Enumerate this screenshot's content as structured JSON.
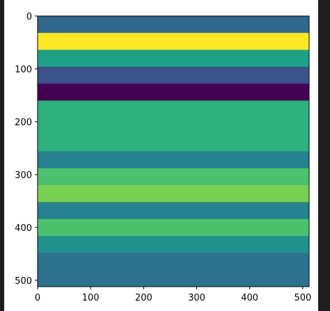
{
  "chart_data": {
    "type": "heatmap",
    "colormap": "viridis",
    "grid": false,
    "xlim": [
      0,
      512
    ],
    "ylim": [
      512,
      0
    ],
    "x_ticks": [
      0,
      100,
      200,
      300,
      400,
      500
    ],
    "y_ticks": [
      0,
      100,
      200,
      300,
      400,
      500
    ],
    "x_tick_labels": [
      "0",
      "100",
      "200",
      "300",
      "400",
      "500"
    ],
    "y_tick_labels": [
      "0",
      "100",
      "200",
      "300",
      "400",
      "500"
    ],
    "bands": [
      {
        "y_start": 0,
        "y_end": 32,
        "value": 0.35,
        "color": "#31688e"
      },
      {
        "y_start": 32,
        "y_end": 64,
        "value": 0.99,
        "color": "#fde725"
      },
      {
        "y_start": 64,
        "y_end": 96,
        "value": 0.57,
        "color": "#1fa187"
      },
      {
        "y_start": 96,
        "y_end": 128,
        "value": 0.3,
        "color": "#3b528b"
      },
      {
        "y_start": 128,
        "y_end": 160,
        "value": 0.0,
        "color": "#440154"
      },
      {
        "y_start": 160,
        "y_end": 192,
        "value": 0.62,
        "color": "#2db27d"
      },
      {
        "y_start": 192,
        "y_end": 224,
        "value": 0.62,
        "color": "#2db27d"
      },
      {
        "y_start": 224,
        "y_end": 256,
        "value": 0.62,
        "color": "#2db27d"
      },
      {
        "y_start": 256,
        "y_end": 288,
        "value": 0.45,
        "color": "#26828e"
      },
      {
        "y_start": 288,
        "y_end": 320,
        "value": 0.7,
        "color": "#4ac16d"
      },
      {
        "y_start": 320,
        "y_end": 352,
        "value": 0.85,
        "color": "#7ad151"
      },
      {
        "y_start": 352,
        "y_end": 384,
        "value": 0.45,
        "color": "#26828e"
      },
      {
        "y_start": 384,
        "y_end": 416,
        "value": 0.7,
        "color": "#4ac16d"
      },
      {
        "y_start": 416,
        "y_end": 448,
        "value": 0.52,
        "color": "#21918c"
      },
      {
        "y_start": 448,
        "y_end": 480,
        "value": 0.37,
        "color": "#2c728e"
      },
      {
        "y_start": 480,
        "y_end": 512,
        "value": 0.37,
        "color": "#2c728e"
      }
    ]
  }
}
